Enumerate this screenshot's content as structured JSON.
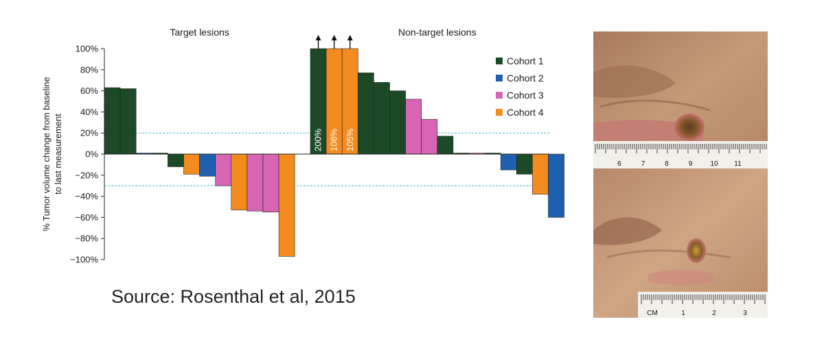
{
  "chart_data": {
    "type": "bar",
    "ylabel": "% Tumor volume change from baseline\nto last measurement",
    "ylim": [
      -100,
      100
    ],
    "yticks": [
      100,
      80,
      60,
      40,
      20,
      0,
      -20,
      -40,
      -60,
      -80,
      -100
    ],
    "ytick_labels": [
      "100%",
      "80%",
      "60%",
      "40%",
      "20%",
      "0%",
      "−20%",
      "−40%",
      "−60%",
      "−80%",
      "−100%"
    ],
    "reference_lines": [
      20,
      -30
    ],
    "sections": [
      {
        "label": "Target lesions",
        "bars": [
          {
            "cohort": "Cohort 1",
            "value": 63
          },
          {
            "cohort": "Cohort 1",
            "value": 62
          },
          {
            "cohort": "Cohort 2",
            "value": 1
          },
          {
            "cohort": "Cohort 1",
            "value": 0
          },
          {
            "cohort": "Cohort 1",
            "value": -12
          },
          {
            "cohort": "Cohort 4",
            "value": -19
          },
          {
            "cohort": "Cohort 2",
            "value": -21
          },
          {
            "cohort": "Cohort 3",
            "value": -30
          },
          {
            "cohort": "Cohort 4",
            "value": -53
          },
          {
            "cohort": "Cohort 3",
            "value": -54
          },
          {
            "cohort": "Cohort 3",
            "value": -55
          },
          {
            "cohort": "Cohort 4",
            "value": -97
          }
        ]
      },
      {
        "label": "Non-target lesions",
        "bars": [
          {
            "cohort": "Cohort 1",
            "value": 200,
            "display": 100,
            "label": "200%",
            "arrow": true
          },
          {
            "cohort": "Cohort 4",
            "value": 108,
            "display": 100,
            "label": "108%",
            "arrow": true
          },
          {
            "cohort": "Cohort 4",
            "value": 105,
            "display": 100,
            "label": "105%",
            "arrow": true
          },
          {
            "cohort": "Cohort 1",
            "value": 77
          },
          {
            "cohort": "Cohort 1",
            "value": 68
          },
          {
            "cohort": "Cohort 1",
            "value": 60
          },
          {
            "cohort": "Cohort 3",
            "value": 52
          },
          {
            "cohort": "Cohort 3",
            "value": 33
          },
          {
            "cohort": "Cohort 1",
            "value": 17
          },
          {
            "cohort": "Cohort 1",
            "value": 0
          },
          {
            "cohort": "Cohort 3",
            "value": 1
          },
          {
            "cohort": "Cohort 1",
            "value": 0
          },
          {
            "cohort": "Cohort 2",
            "value": -15
          },
          {
            "cohort": "Cohort 1",
            "value": -19
          },
          {
            "cohort": "Cohort 4",
            "value": -38
          },
          {
            "cohort": "Cohort 2",
            "value": -60
          }
        ]
      }
    ],
    "legend": {
      "placement": "top-right",
      "entries": [
        {
          "name": "Cohort 1",
          "color": "#1c4a27"
        },
        {
          "name": "Cohort 2",
          "color": "#1f5fb0"
        },
        {
          "name": "Cohort 3",
          "color": "#d765b4"
        },
        {
          "name": "Cohort 4",
          "color": "#f38b1f"
        }
      ]
    },
    "grid": false
  },
  "source_text": "Source: Rosenthal et al, 2015",
  "photos": {
    "top_ruler_labels": [
      "6",
      "7",
      "8",
      "9",
      "10",
      "11"
    ],
    "bottom_ruler_labels": [
      "CM",
      "1",
      "2",
      "3"
    ]
  }
}
